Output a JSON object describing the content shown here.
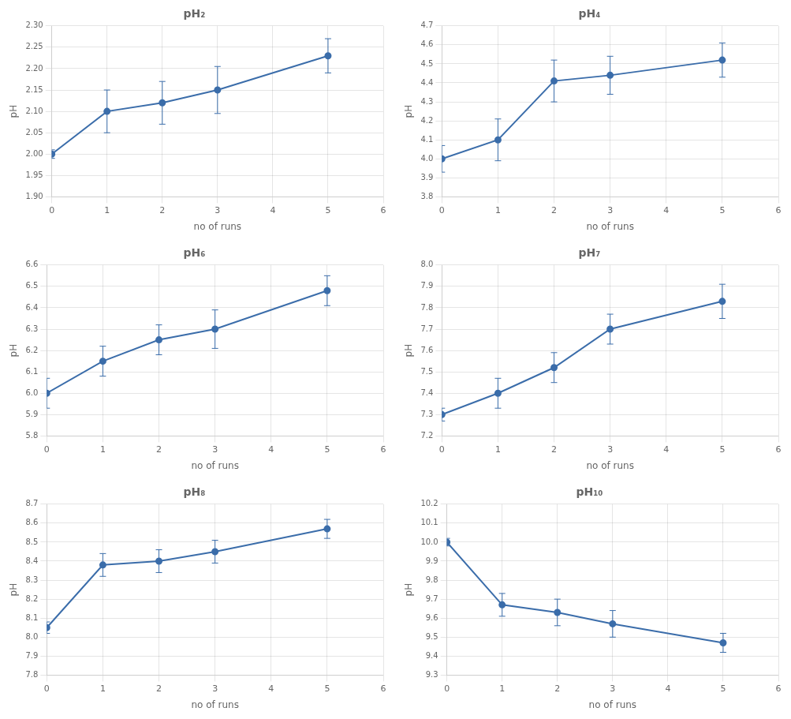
{
  "chart_data": [
    {
      "type": "line",
      "title": "pH₂",
      "xlabel": "no of runs",
      "ylabel": "pH",
      "x": [
        0,
        1,
        2,
        3,
        5
      ],
      "values": [
        2.0,
        2.1,
        2.12,
        2.15,
        2.23
      ],
      "yerr": [
        0.01,
        0.05,
        0.05,
        0.055,
        0.04
      ],
      "color": "#3B6DAA",
      "marker": "circle",
      "grid": true,
      "xlim": [
        0,
        6
      ],
      "xticks": [
        0,
        1,
        2,
        3,
        4,
        5,
        6
      ],
      "ylim": [
        1.9,
        2.3
      ],
      "yticks": [
        {
          "value": 1.9,
          "label": "1.90"
        },
        1.95,
        {
          "value": 2.0,
          "label": "2.00"
        },
        2.05,
        {
          "value": 2.1,
          "label": "2.10"
        },
        2.15,
        {
          "value": 2.2,
          "label": "2.20"
        },
        2.25,
        {
          "value": 2.3,
          "label": "2.30"
        }
      ]
    },
    {
      "type": "line",
      "title": "pH₄",
      "xlabel": "no of runs",
      "ylabel": "pH",
      "x": [
        0,
        1,
        2,
        3,
        5
      ],
      "values": [
        4.0,
        4.1,
        4.41,
        4.44,
        4.52
      ],
      "yerr": [
        0.07,
        0.11,
        0.11,
        0.1,
        0.09
      ],
      "color": "#3B6DAA",
      "marker": "circle",
      "grid": true,
      "xlim": [
        0,
        6
      ],
      "xticks": [
        0,
        1,
        2,
        3,
        4,
        5,
        6
      ],
      "ylim": [
        3.8,
        4.7
      ],
      "yticks": [
        3.8,
        3.9,
        {
          "value": 4.0,
          "label": "4.0"
        },
        4.1,
        4.2,
        4.3,
        4.4,
        4.5,
        4.6,
        4.7
      ]
    },
    {
      "type": "line",
      "title": "pH₆",
      "xlabel": "no of runs",
      "ylabel": "pH",
      "x": [
        0,
        1,
        2,
        3,
        5
      ],
      "values": [
        6.0,
        6.15,
        6.25,
        6.3,
        6.48
      ],
      "yerr": [
        0.07,
        0.07,
        0.07,
        0.09,
        0.07
      ],
      "color": "#3B6DAA",
      "marker": "circle",
      "grid": true,
      "xlim": [
        0,
        6
      ],
      "xticks": [
        0,
        1,
        2,
        3,
        4,
        5,
        6
      ],
      "ylim": [
        5.8,
        6.6
      ],
      "yticks": [
        5.8,
        5.9,
        {
          "value": 6.0,
          "label": "6.0"
        },
        6.1,
        6.2,
        6.3,
        6.4,
        6.5,
        6.6
      ]
    },
    {
      "type": "line",
      "title": "pH₇",
      "xlabel": "no of runs",
      "ylabel": "pH",
      "x": [
        0,
        1,
        2,
        3,
        5
      ],
      "values": [
        7.3,
        7.4,
        7.52,
        7.7,
        7.83
      ],
      "yerr": [
        0.03,
        0.07,
        0.07,
        0.07,
        0.08
      ],
      "color": "#3B6DAA",
      "marker": "circle",
      "grid": true,
      "xlim": [
        0,
        6
      ],
      "xticks": [
        0,
        1,
        2,
        3,
        4,
        5,
        6
      ],
      "ylim": [
        7.2,
        8.0
      ],
      "yticks": [
        7.2,
        7.3,
        7.4,
        7.5,
        7.6,
        7.7,
        7.8,
        7.9,
        {
          "value": 8.0,
          "label": "8.0"
        }
      ]
    },
    {
      "type": "line",
      "title": "pH₈",
      "xlabel": "no of runs",
      "ylabel": "pH",
      "x": [
        0,
        1,
        2,
        3,
        5
      ],
      "values": [
        8.05,
        8.38,
        8.4,
        8.45,
        8.57
      ],
      "yerr": [
        0.03,
        0.06,
        0.06,
        0.06,
        0.05
      ],
      "color": "#3B6DAA",
      "marker": "circle",
      "grid": true,
      "xlim": [
        0,
        6
      ],
      "xticks": [
        0,
        1,
        2,
        3,
        4,
        5,
        6
      ],
      "ylim": [
        7.8,
        8.7
      ],
      "yticks": [
        7.8,
        7.9,
        {
          "value": 8.0,
          "label": "8.0"
        },
        8.1,
        8.2,
        8.3,
        8.4,
        8.5,
        8.6,
        8.7
      ]
    },
    {
      "type": "line",
      "title": "pH₁₀",
      "xlabel": "no of runs",
      "ylabel": "pH",
      "x": [
        0,
        1,
        2,
        3,
        5
      ],
      "values": [
        10.0,
        9.67,
        9.63,
        9.57,
        9.47
      ],
      "yerr": [
        0.02,
        0.06,
        0.07,
        0.07,
        0.05
      ],
      "color": "#3B6DAA",
      "marker": "circle",
      "grid": true,
      "xlim": [
        0,
        6
      ],
      "xticks": [
        0,
        1,
        2,
        3,
        4,
        5,
        6
      ],
      "ylim": [
        9.3,
        10.2
      ],
      "yticks": [
        9.3,
        9.4,
        9.5,
        9.6,
        9.7,
        9.8,
        9.9,
        {
          "value": 10.0,
          "label": "10.0"
        },
        10.1,
        10.2
      ]
    }
  ]
}
